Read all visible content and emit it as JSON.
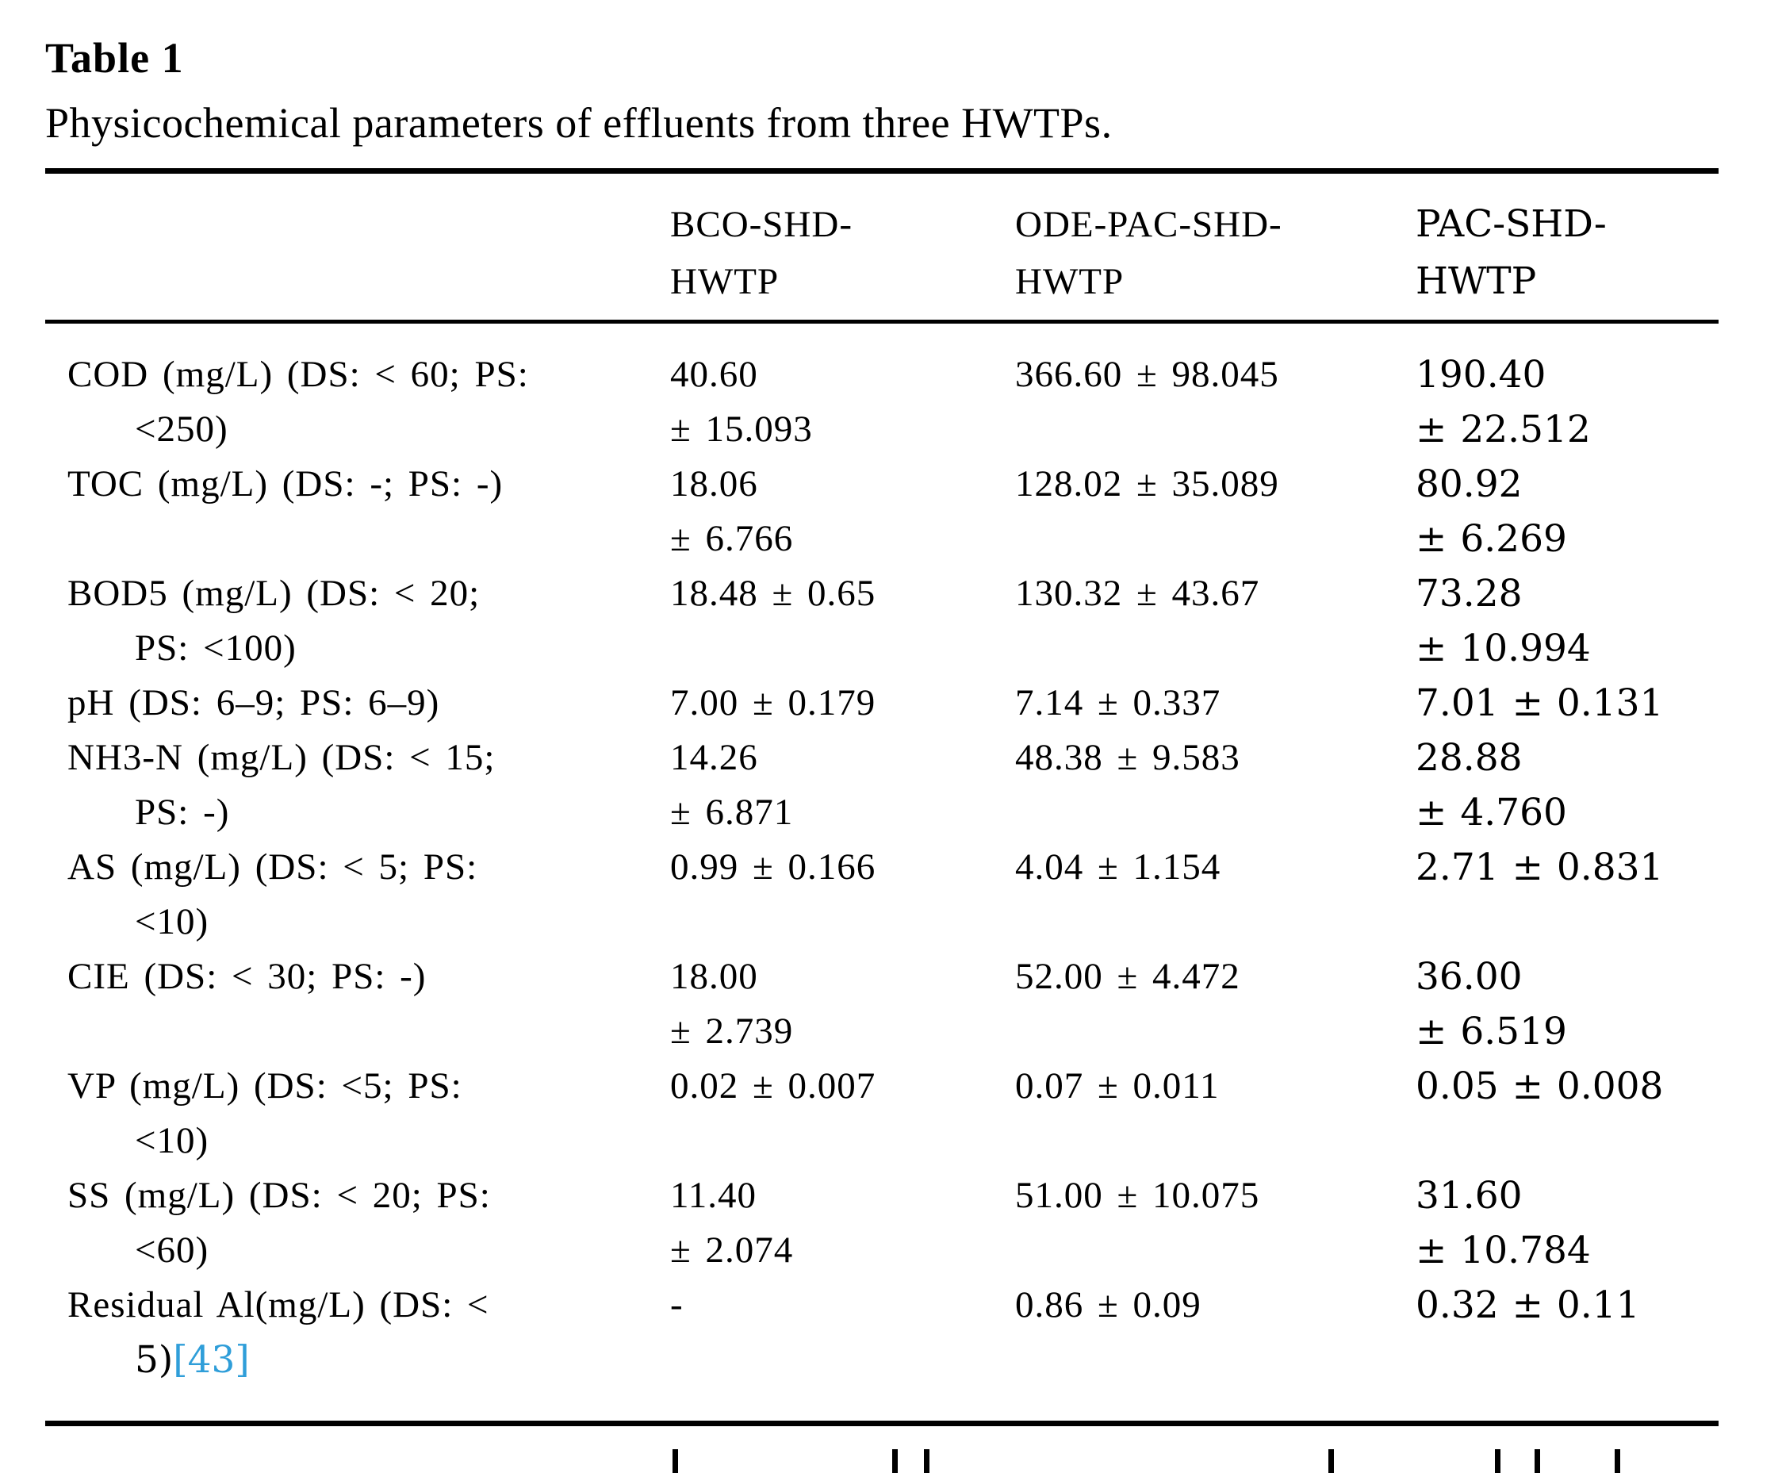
{
  "title": "Table 1",
  "caption": "Physicochemical parameters of effluents from three HWTPs.",
  "link_color": "#2f9ed9",
  "text_color": "#000000",
  "table": {
    "columns": [
      {
        "lines": [
          "",
          ""
        ]
      },
      {
        "lines": [
          "BCO-SHD-",
          "HWTP"
        ]
      },
      {
        "lines": [
          "ODE-PAC-SHD-",
          "HWTP"
        ]
      },
      {
        "lines": [
          "PAC-SHD-",
          "HWTP"
        ]
      }
    ],
    "rows": [
      {
        "parameter_lines": [
          "COD (mg/L) (DS: < 60; PS:",
          "<250)"
        ],
        "values": [
          [
            "40.60",
            "± 15.093"
          ],
          [
            "366.60 ± 98.045"
          ],
          [
            "190.40",
            "± 22.512"
          ]
        ]
      },
      {
        "parameter_lines": [
          "TOC (mg/L) (DS: -; PS: -)"
        ],
        "values": [
          [
            "18.06",
            "± 6.766"
          ],
          [
            "128.02 ± 35.089"
          ],
          [
            "80.92",
            "± 6.269"
          ]
        ]
      },
      {
        "parameter_lines": [
          "BOD5 (mg/L) (DS: < 20;",
          "PS: <100)"
        ],
        "values": [
          [
            "18.48 ± 0.65"
          ],
          [
            "130.32 ± 43.67"
          ],
          [
            "73.28",
            "± 10.994"
          ]
        ]
      },
      {
        "parameter_lines": [
          "pH (DS: 6–9; PS: 6–9)"
        ],
        "values": [
          [
            "7.00 ± 0.179"
          ],
          [
            "7.14 ± 0.337"
          ],
          [
            "7.01 ± 0.131"
          ]
        ]
      },
      {
        "parameter_lines": [
          "NH3-N (mg/L) (DS: < 15;",
          "PS: -)"
        ],
        "values": [
          [
            "14.26",
            "± 6.871"
          ],
          [
            "48.38 ± 9.583"
          ],
          [
            "28.88",
            "± 4.760"
          ]
        ]
      },
      {
        "parameter_lines": [
          "AS (mg/L) (DS: < 5; PS:",
          "<10)"
        ],
        "values": [
          [
            "0.99 ± 0.166"
          ],
          [
            "4.04 ± 1.154"
          ],
          [
            "2.71 ± 0.831"
          ]
        ]
      },
      {
        "parameter_lines": [
          "CIE (DS: < 30; PS: -)"
        ],
        "values": [
          [
            "18.00",
            "± 2.739"
          ],
          [
            "52.00 ± 4.472"
          ],
          [
            "36.00",
            "± 6.519"
          ]
        ]
      },
      {
        "parameter_lines": [
          "VP (mg/L) (DS: <5; PS:",
          "<10)"
        ],
        "values": [
          [
            "0.02 ± 0.007"
          ],
          [
            "0.07 ± 0.011"
          ],
          [
            "0.05 ± 0.008"
          ]
        ]
      },
      {
        "parameter_lines": [
          "SS (mg/L) (DS: < 20; PS:",
          "<60)"
        ],
        "values": [
          [
            "11.40",
            "± 2.074"
          ],
          [
            "51.00 ± 10.075"
          ],
          [
            "31.60",
            "± 10.784"
          ]
        ]
      },
      {
        "parameter_lines": [
          "Residual Al(mg/L) (DS: <",
          {
            "segs": [
              {
                "t": "5)"
              },
              {
                "t": "[43]",
                "link": true
              }
            ]
          }
        ],
        "values": [
          [
            "-"
          ],
          [
            "0.86 ± 0.09"
          ],
          [
            "0.32 ± 0.11"
          ]
        ]
      }
    ]
  }
}
